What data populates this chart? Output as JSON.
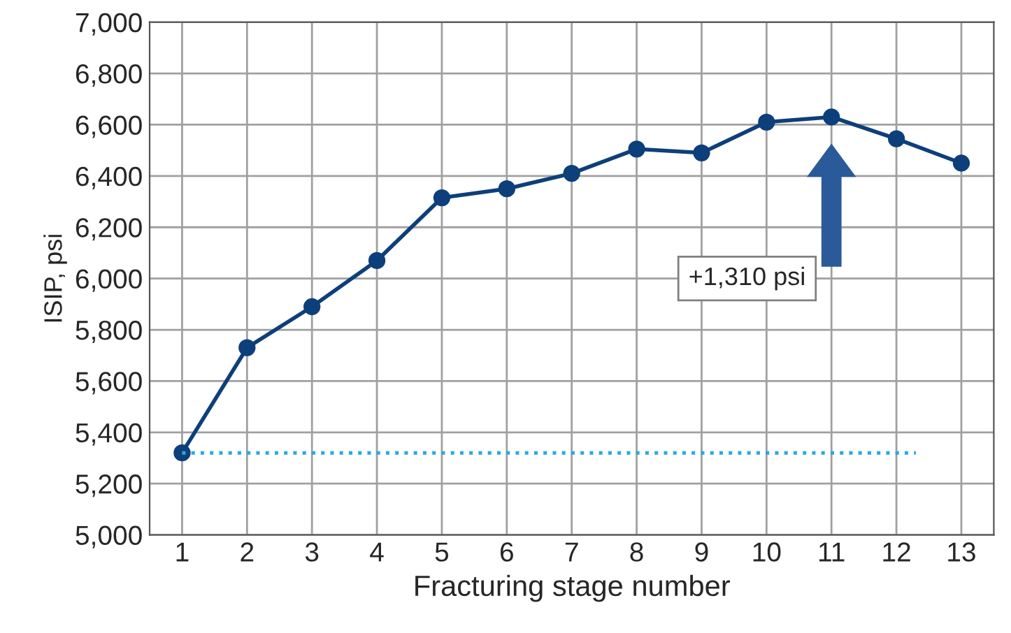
{
  "chart_data": {
    "type": "line",
    "xlabel": "Fracturing stage number",
    "ylabel": "ISIP, psi",
    "categories": [
      "1",
      "2",
      "3",
      "4",
      "5",
      "6",
      "7",
      "8",
      "9",
      "10",
      "11",
      "12",
      "13"
    ],
    "series": [
      {
        "color": "#0d3f7a",
        "values": [
          5320,
          5730,
          5890,
          6070,
          6315,
          6350,
          6410,
          6505,
          6490,
          6610,
          6630,
          6545,
          6450
        ]
      }
    ],
    "ylim": [
      5000,
      7000
    ],
    "yticks": [
      {
        "value": 5000,
        "label": "5,000"
      },
      {
        "value": 5200,
        "label": "5,200"
      },
      {
        "value": 5400,
        "label": "5,400"
      },
      {
        "value": 5600,
        "label": "5,600"
      },
      {
        "value": 5800,
        "label": "5,800"
      },
      {
        "value": 6000,
        "label": "6,000"
      },
      {
        "value": 6200,
        "label": "6,200"
      },
      {
        "value": 6400,
        "label": "6,400"
      },
      {
        "value": 6600,
        "label": "6,600"
      },
      {
        "value": 6800,
        "label": "6,800"
      },
      {
        "value": 7000,
        "label": "7,000"
      }
    ],
    "ref_lines": [
      {
        "axis": "y",
        "value": 5320,
        "color": "#29a9e0",
        "line_style": "dotted"
      }
    ],
    "annotations": [
      "+1,310 psi"
    ],
    "grid": true,
    "marker": "circle",
    "line_style": "solid",
    "legend": false
  }
}
